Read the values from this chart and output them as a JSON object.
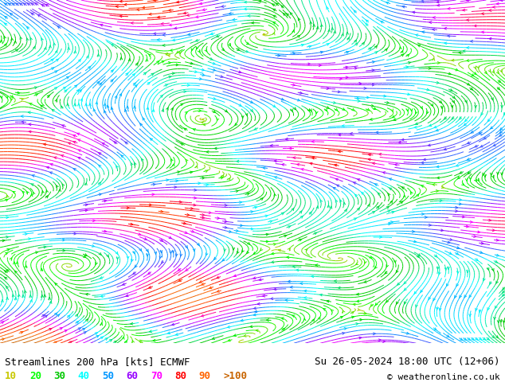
{
  "title_left": "Streamlines 200 hPa [kts] ECMWF",
  "title_right": "Su 26-05-2024 18:00 UTC (12+06)",
  "copyright": "© weatheronline.co.uk",
  "legend_values": [
    "10",
    "20",
    "30",
    "40",
    "50",
    "60",
    "70",
    "80",
    "90",
    ">100"
  ],
  "legend_colors": [
    "#c8c800",
    "#00ff00",
    "#00c800",
    "#00ffff",
    "#0096ff",
    "#9600ff",
    "#ff00ff",
    "#ff0000",
    "#ff6400",
    "#c86400"
  ],
  "background_color": "#ffffff",
  "fig_width": 6.34,
  "fig_height": 4.9,
  "dpi": 100,
  "streamline_seed_points": 2000,
  "title_fontsize": 9,
  "legend_fontsize": 9
}
